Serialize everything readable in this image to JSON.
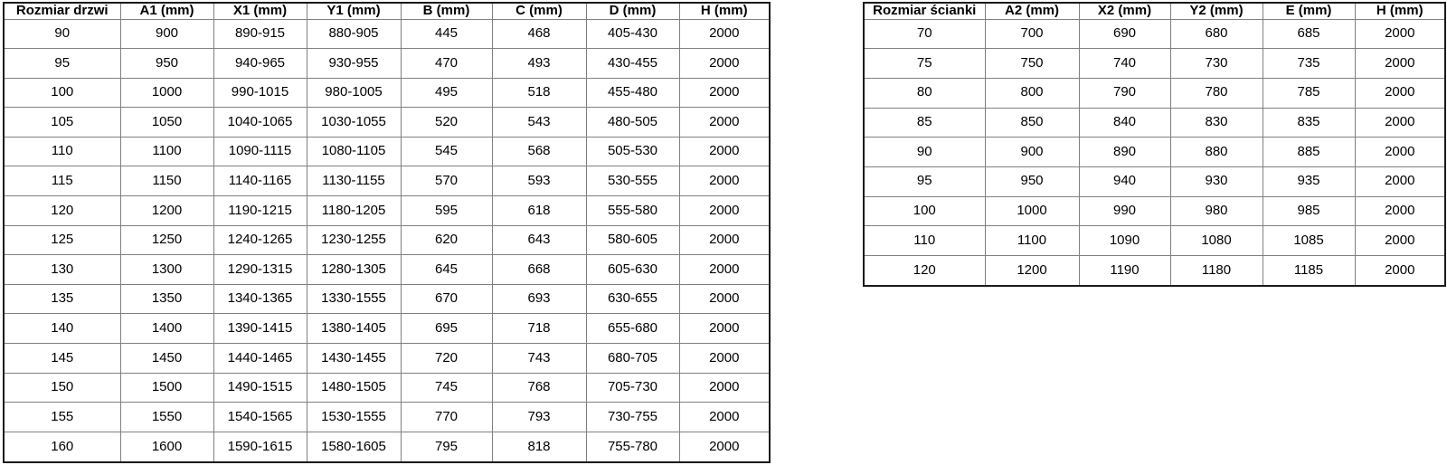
{
  "tables": {
    "door": {
      "title": "Rozmiar drzwi",
      "headers": [
        "Rozmiar drzwi",
        "A1 (mm)",
        "X1 (mm)",
        "Y1 (mm)",
        "B (mm)",
        "C (mm)",
        "D (mm)",
        "H (mm)"
      ],
      "rows": [
        [
          "90",
          "900",
          "890-915",
          "880-905",
          "445",
          "468",
          "405-430",
          "2000"
        ],
        [
          "95",
          "950",
          "940-965",
          "930-955",
          "470",
          "493",
          "430-455",
          "2000"
        ],
        [
          "100",
          "1000",
          "990-1015",
          "980-1005",
          "495",
          "518",
          "455-480",
          "2000"
        ],
        [
          "105",
          "1050",
          "1040-1065",
          "1030-1055",
          "520",
          "543",
          "480-505",
          "2000"
        ],
        [
          "110",
          "1100",
          "1090-1115",
          "1080-1105",
          "545",
          "568",
          "505-530",
          "2000"
        ],
        [
          "115",
          "1150",
          "1140-1165",
          "1130-1155",
          "570",
          "593",
          "530-555",
          "2000"
        ],
        [
          "120",
          "1200",
          "1190-1215",
          "1180-1205",
          "595",
          "618",
          "555-580",
          "2000"
        ],
        [
          "125",
          "1250",
          "1240-1265",
          "1230-1255",
          "620",
          "643",
          "580-605",
          "2000"
        ],
        [
          "130",
          "1300",
          "1290-1315",
          "1280-1305",
          "645",
          "668",
          "605-630",
          "2000"
        ],
        [
          "135",
          "1350",
          "1340-1365",
          "1330-1555",
          "670",
          "693",
          "630-655",
          "2000"
        ],
        [
          "140",
          "1400",
          "1390-1415",
          "1380-1405",
          "695",
          "718",
          "655-680",
          "2000"
        ],
        [
          "145",
          "1450",
          "1440-1465",
          "1430-1455",
          "720",
          "743",
          "680-705",
          "2000"
        ],
        [
          "150",
          "1500",
          "1490-1515",
          "1480-1505",
          "745",
          "768",
          "705-730",
          "2000"
        ],
        [
          "155",
          "1550",
          "1540-1565",
          "1530-1555",
          "770",
          "793",
          "730-755",
          "2000"
        ],
        [
          "160",
          "1600",
          "1590-1615",
          "1580-1605",
          "795",
          "818",
          "755-780",
          "2000"
        ]
      ]
    },
    "wall": {
      "title": "Rozmiar ścianki",
      "headers": [
        "Rozmiar ścianki",
        "A2 (mm)",
        "X2 (mm)",
        "Y2 (mm)",
        "E (mm)",
        "H (mm)"
      ],
      "rows": [
        [
          "70",
          "700",
          "690",
          "680",
          "685",
          "2000"
        ],
        [
          "75",
          "750",
          "740",
          "730",
          "735",
          "2000"
        ],
        [
          "80",
          "800",
          "790",
          "780",
          "785",
          "2000"
        ],
        [
          "85",
          "850",
          "840",
          "830",
          "835",
          "2000"
        ],
        [
          "90",
          "900",
          "890",
          "880",
          "885",
          "2000"
        ],
        [
          "95",
          "950",
          "940",
          "930",
          "935",
          "2000"
        ],
        [
          "100",
          "1000",
          "990",
          "980",
          "985",
          "2000"
        ],
        [
          "110",
          "1100",
          "1090",
          "1080",
          "1085",
          "2000"
        ],
        [
          "120",
          "1200",
          "1190",
          "1180",
          "1185",
          "2000"
        ]
      ]
    }
  },
  "colors": {
    "outer_border": "#1a1a1a",
    "inner_border": "#808080",
    "text": "#000000",
    "background": "#ffffff"
  }
}
